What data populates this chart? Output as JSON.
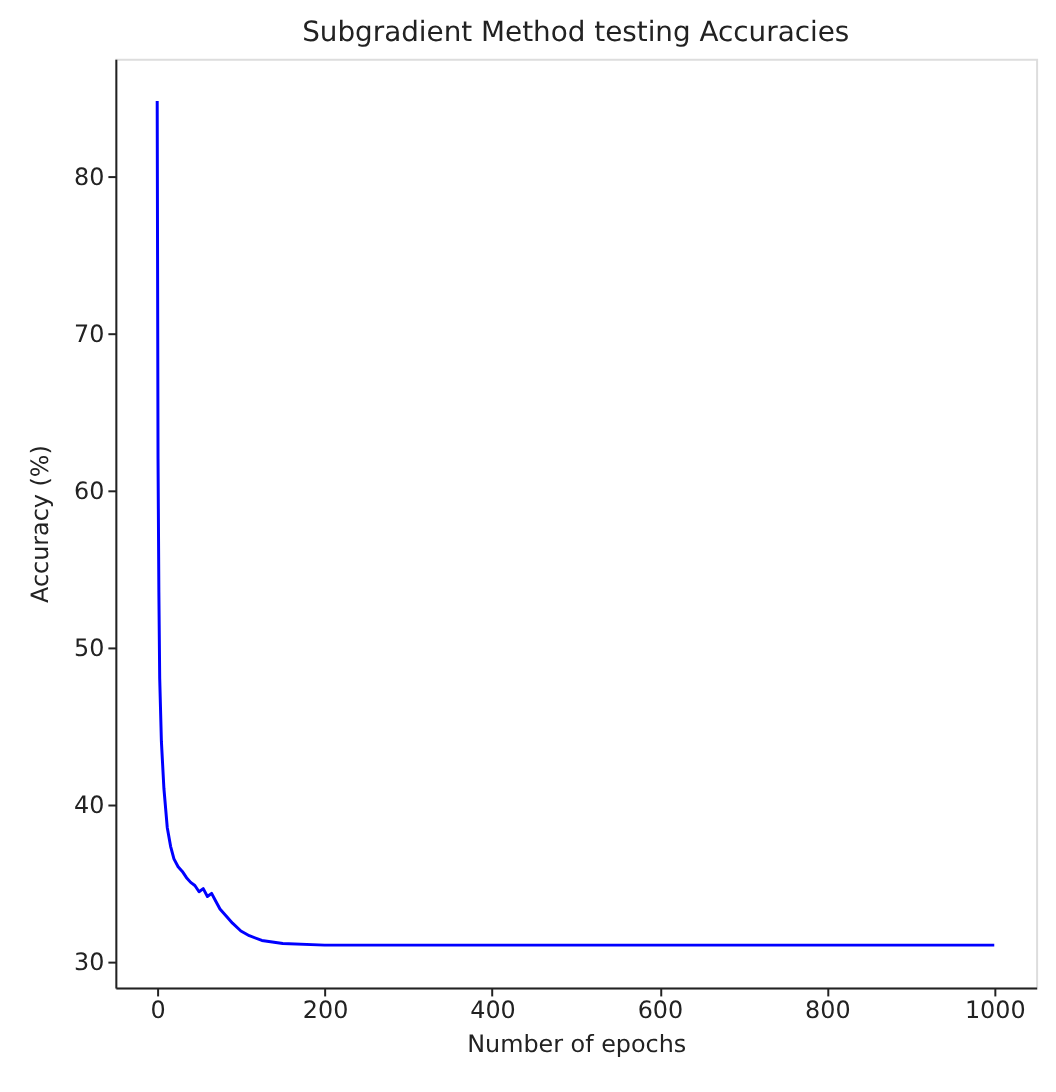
{
  "chart_data": {
    "type": "line",
    "title": "Subgradient Method testing Accuracies",
    "xlabel": "Number of epochs",
    "ylabel": "Accuracy (%)",
    "x": [
      0,
      1,
      2,
      3,
      5,
      8,
      12,
      16,
      20,
      25,
      30,
      35,
      40,
      45,
      50,
      55,
      60,
      65,
      70,
      75,
      80,
      90,
      100,
      110,
      125,
      150,
      200,
      1000
    ],
    "series": [
      {
        "color": "#0000ff",
        "values": [
          84.8,
          62,
          53.5,
          48,
          44,
          41,
          38.5,
          37.3,
          36.5,
          36,
          35.7,
          35.3,
          35.0,
          34.8,
          34.4,
          34.6,
          34.1,
          34.3,
          33.8,
          33.3,
          33.0,
          32.4,
          31.9,
          31.6,
          31.3,
          31.1,
          31.0,
          31.0
        ]
      }
    ],
    "xlim": [
      -50,
      1050
    ],
    "ylim": [
      28.3,
      87.5
    ],
    "xticks": [
      0,
      200,
      400,
      600,
      800,
      1000
    ],
    "yticks": [
      30,
      40,
      50,
      60,
      70,
      80
    ],
    "grid": false,
    "legend": false,
    "marker": "none",
    "line_style": "solid"
  }
}
